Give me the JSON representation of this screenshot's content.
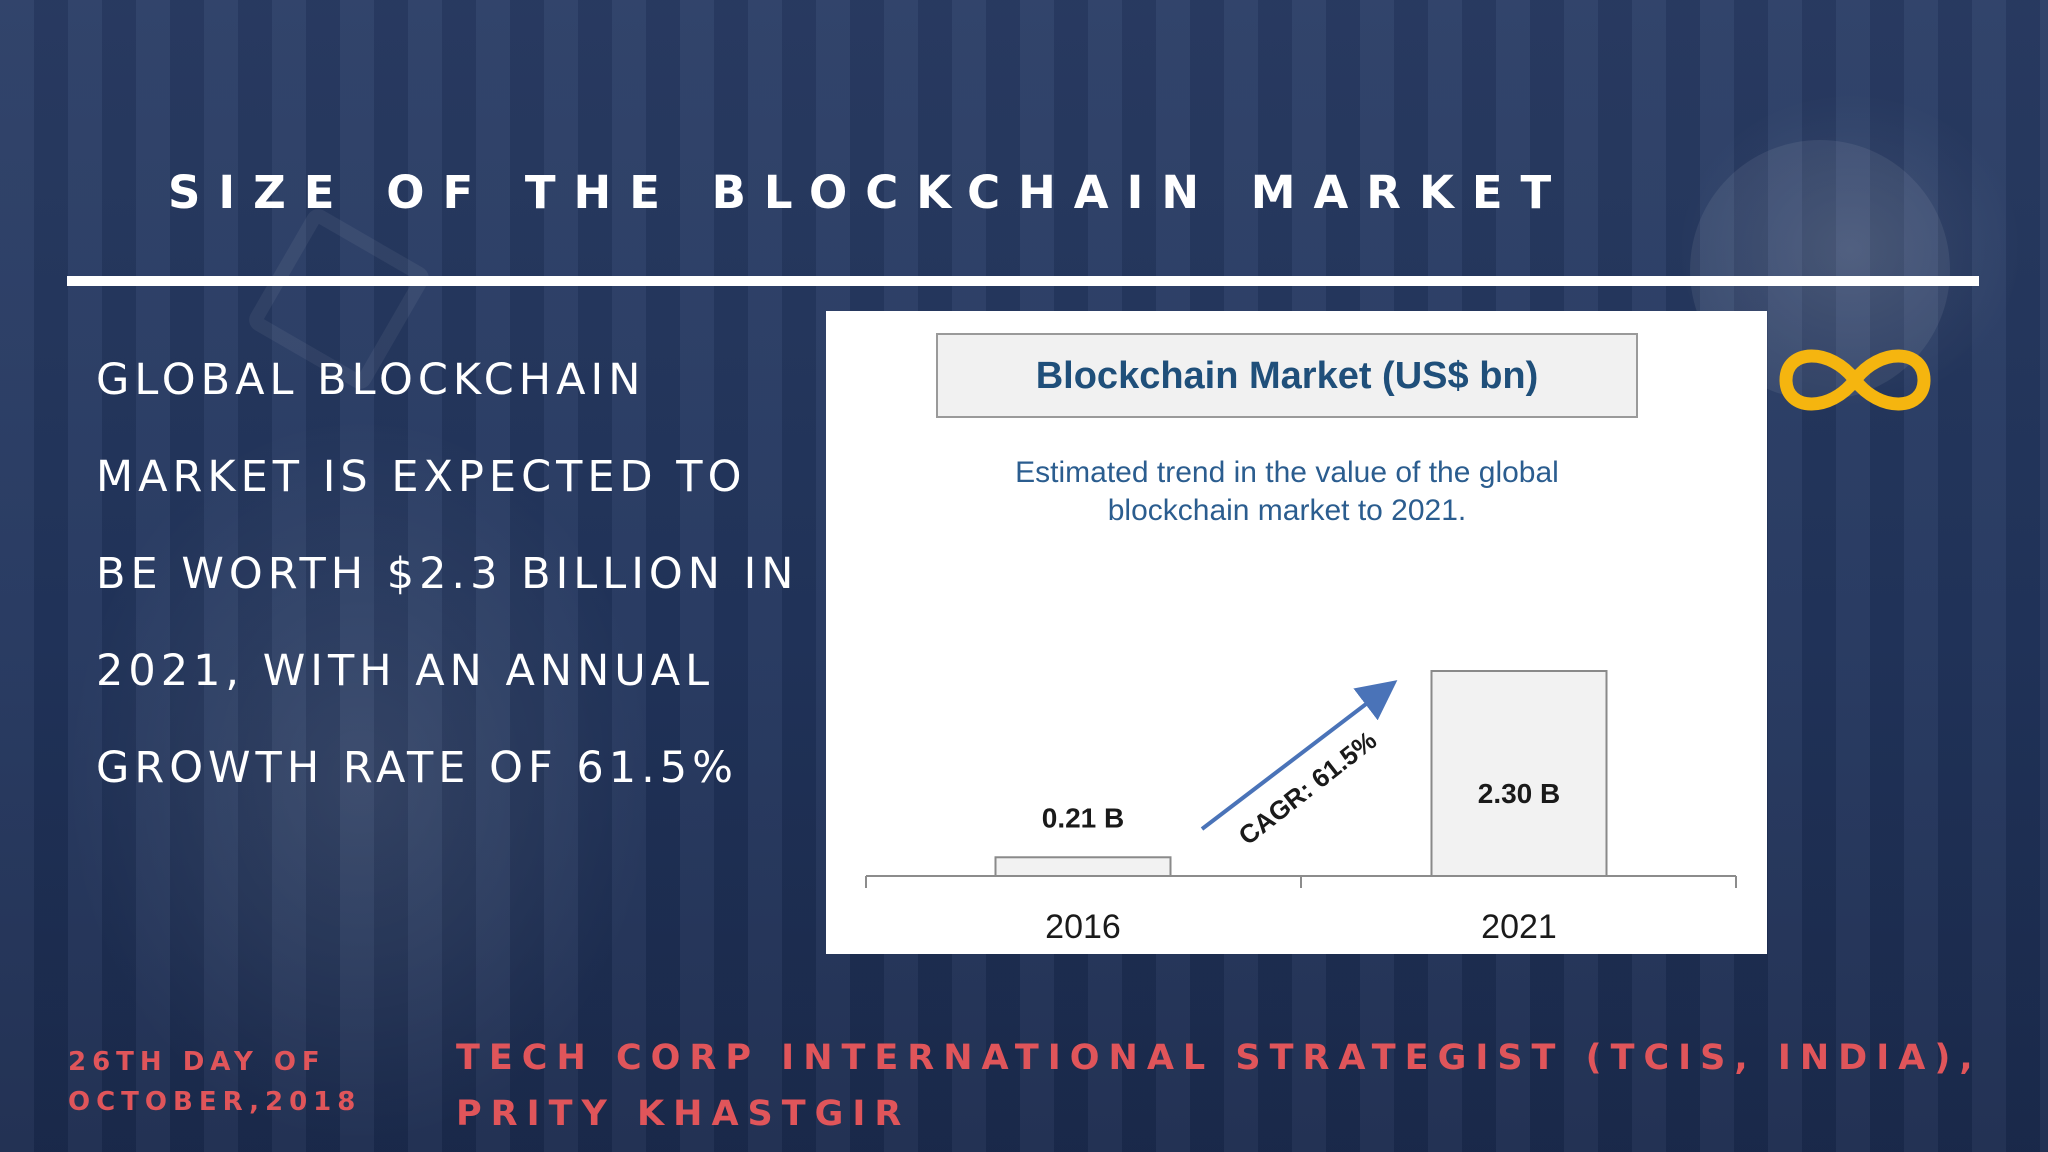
{
  "slide": {
    "title": "SIZE OF THE BLOCKCHAIN MARKET",
    "body": "GLOBAL BLOCKCHAIN MARKET IS EXPECTED TO BE WORTH $2.3 BILLION IN 2021, WITH AN ANNUAL GROWTH RATE OF 61.5%",
    "date": "26TH DAY OF OCTOBER,2018",
    "credit": "TECH CORP INTERNATIONAL STRATEGIST (TCIS, INDIA), PRITY KHASTGIR",
    "accent_color": "#e0555a",
    "logo_icon": "infinity-icon",
    "logo_color": "#f5b50f"
  },
  "chart_data": {
    "type": "bar",
    "title": "Blockchain Market (US$ bn)",
    "subtitle": "Estimated trend in the value of the global blockchain market to 2021.",
    "categories": [
      "2016",
      "2021"
    ],
    "values": [
      0.21,
      2.3
    ],
    "data_labels": [
      "0.21 B",
      "2.30 B"
    ],
    "annotation": "CAGR: 61.5%",
    "ylim": [
      0,
      2.5
    ],
    "grid": false,
    "legend": "none"
  }
}
